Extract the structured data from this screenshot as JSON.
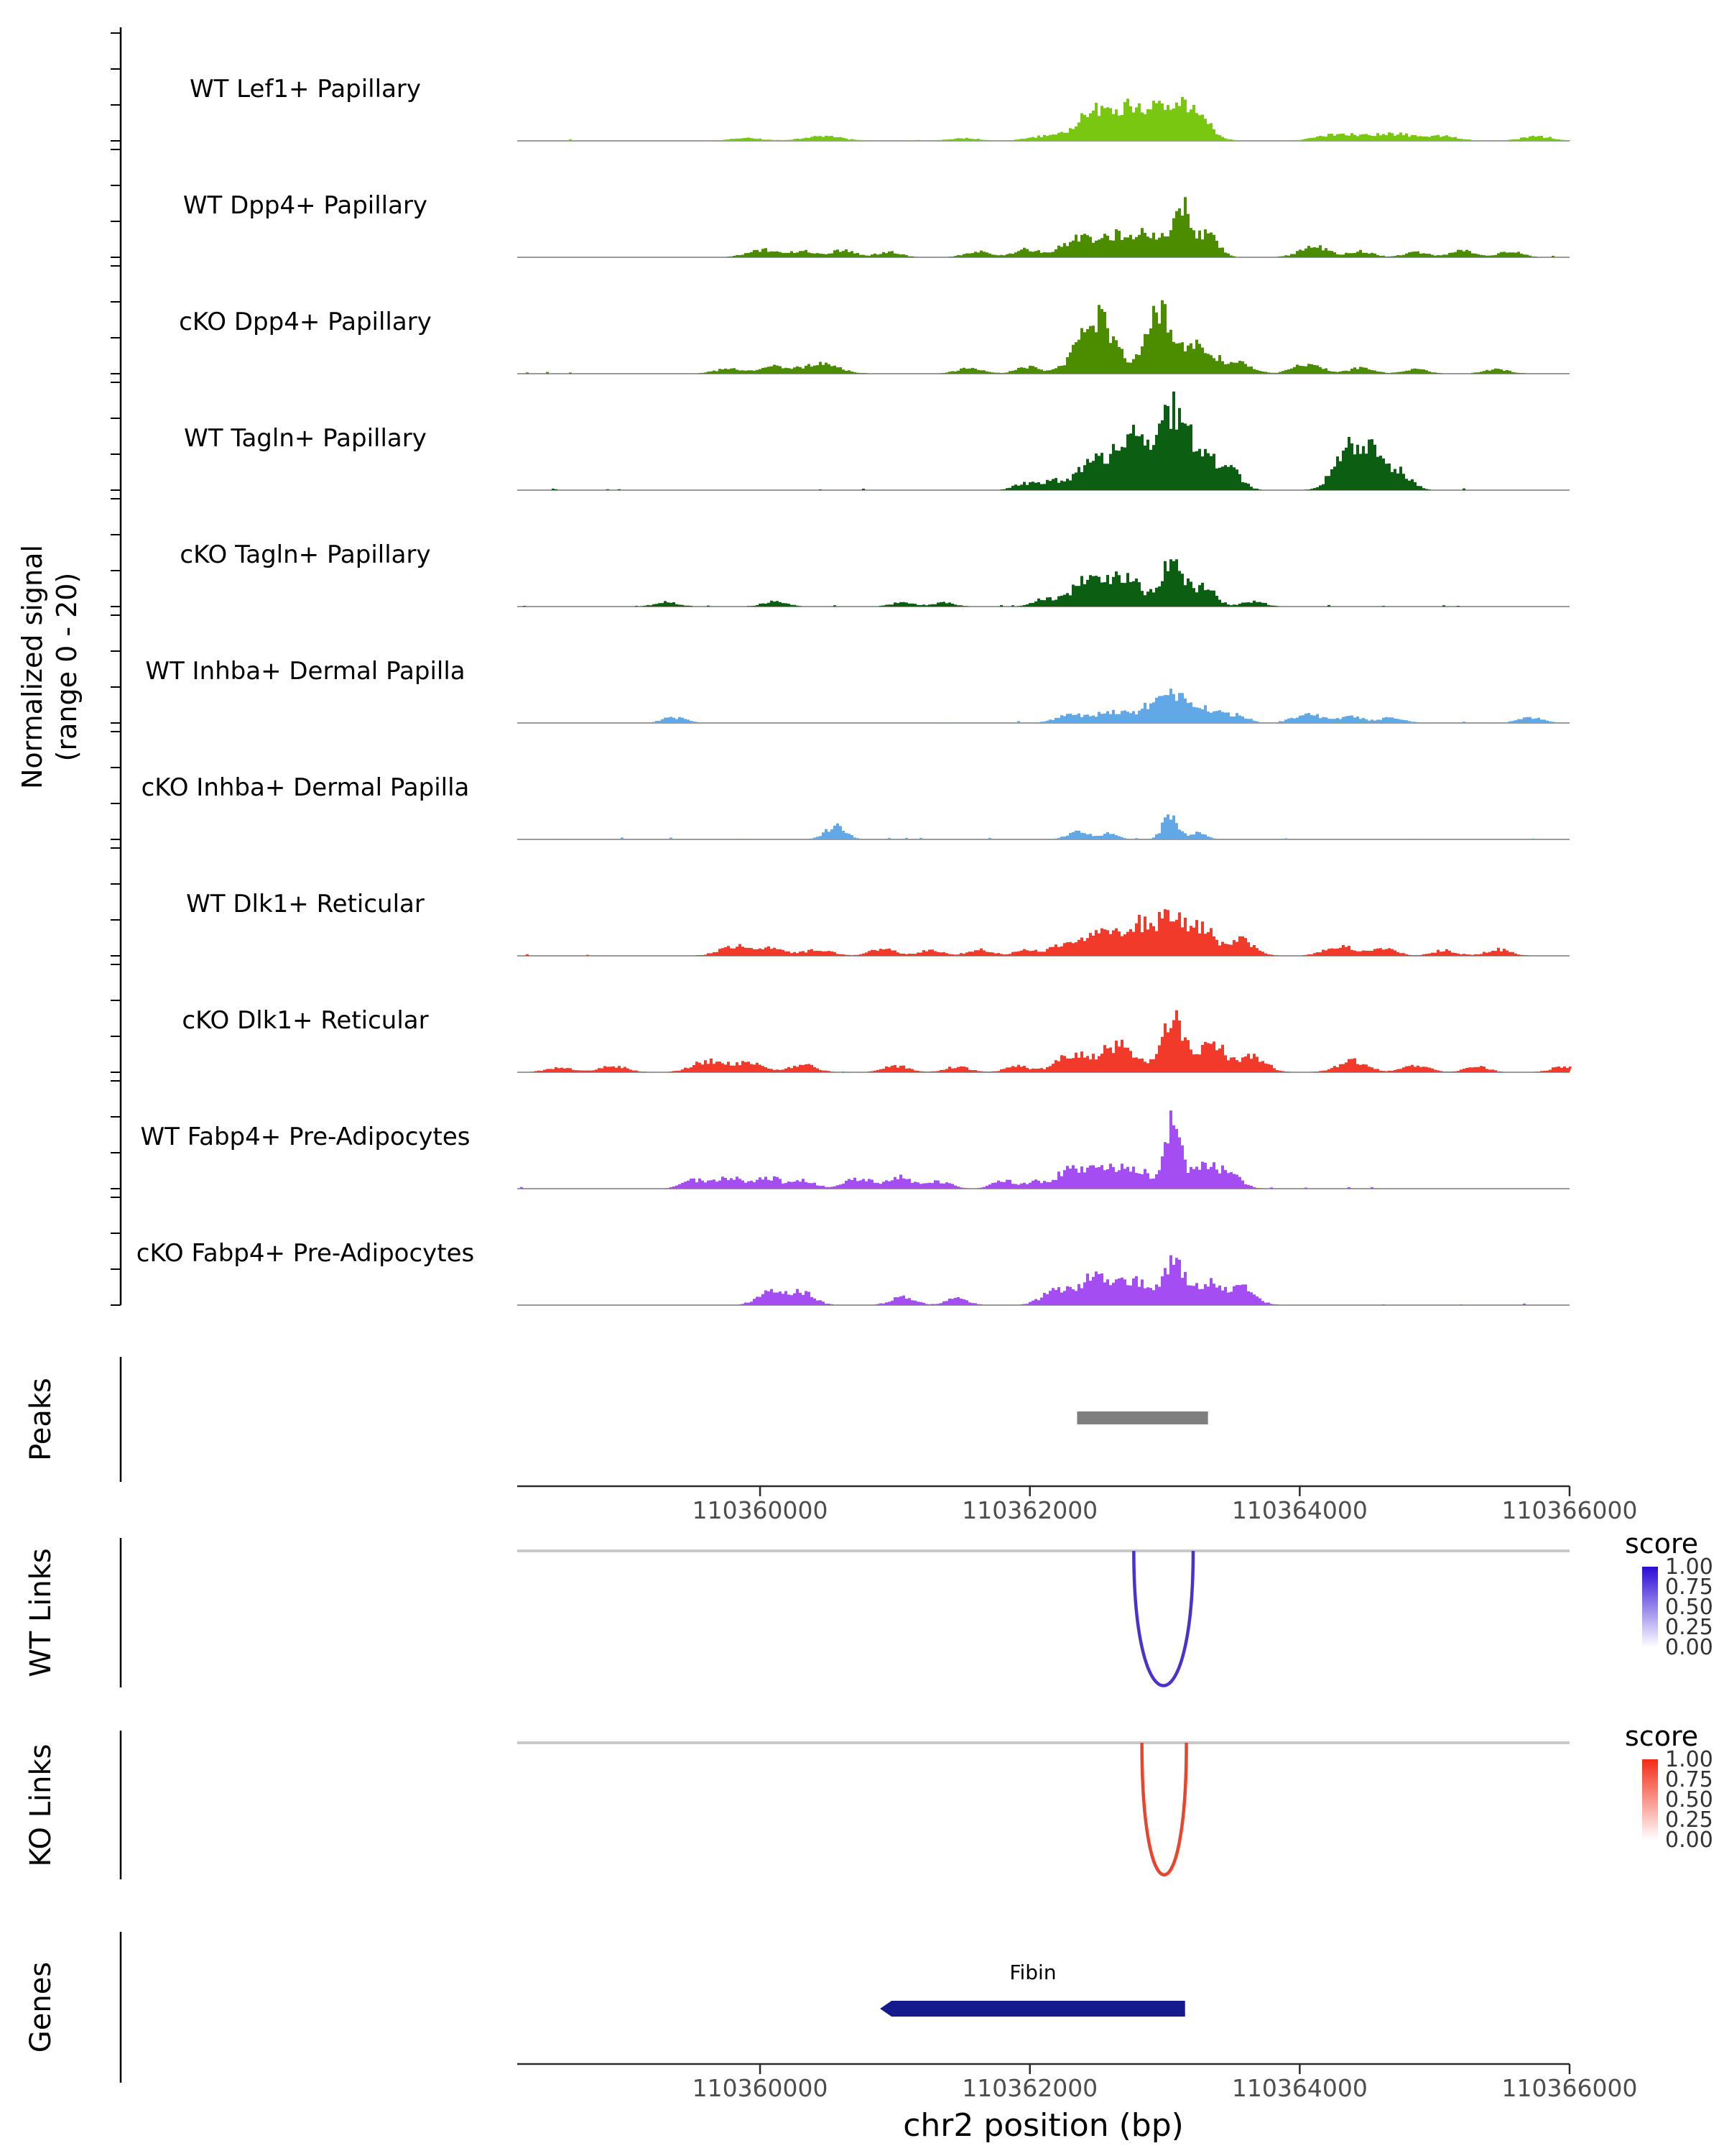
{
  "y_axis": {
    "line1": "Normalized signal",
    "line2": "(range 0 - 20)"
  },
  "panels": {
    "peaks_label": "Peaks",
    "wt_links_label": "WT Links",
    "ko_links_label": "KO Links",
    "genes_label": "Genes"
  },
  "x_axis": {
    "title": "chr2 position (bp)",
    "region_start": 110358200,
    "region_end": 110366000,
    "ticks": [
      110360000,
      110362000,
      110364000,
      110366000
    ],
    "tick_labels": [
      "110360000",
      "110362000",
      "110364000",
      "110366000"
    ]
  },
  "score_legend": {
    "title": "score",
    "labels": [
      "1.00",
      "0.75",
      "0.50",
      "0.25",
      "0.00"
    ],
    "wt_high_color": "#2B0AD6",
    "ko_high_color": "#F22B16",
    "low_color": "#FFFFFF"
  },
  "chart_data": {
    "type": "area",
    "xlabel": "chr2 position (bp)",
    "ylabel": "Normalized signal (range 0 - 20)",
    "x_range": [
      110358200,
      110366000
    ],
    "track_y_range": [
      0,
      20
    ],
    "tracks": [
      {
        "name": "WT Lef1+ Papillary",
        "color": "#7AC712",
        "peaks": [
          [
            110359900,
            0.5,
            120
          ],
          [
            110360450,
            0.9,
            140
          ],
          [
            110361500,
            0.5,
            110
          ],
          [
            110362050,
            0.7,
            100
          ],
          [
            110362500,
            5.5,
            160
          ],
          [
            110362780,
            4.5,
            120
          ],
          [
            110363020,
            6.5,
            110
          ],
          [
            110363220,
            4.2,
            110
          ],
          [
            110364300,
            1.3,
            160
          ],
          [
            110364700,
            1.2,
            150
          ],
          [
            110365050,
            0.8,
            120
          ],
          [
            110365750,
            0.8,
            120
          ]
        ]
      },
      {
        "name": "WT Dpp4+ Papillary",
        "color": "#4C8D00",
        "peaks": [
          [
            110360000,
            1.4,
            110
          ],
          [
            110360300,
            1.1,
            90
          ],
          [
            110360600,
            1.3,
            100
          ],
          [
            110360950,
            1.0,
            90
          ],
          [
            110361600,
            1.1,
            90
          ],
          [
            110361950,
            1.4,
            90
          ],
          [
            110362350,
            3.2,
            140
          ],
          [
            110362650,
            3.8,
            120
          ],
          [
            110362900,
            4.2,
            100
          ],
          [
            110363120,
            8.8,
            55
          ],
          [
            110363300,
            4.6,
            80
          ],
          [
            110364100,
            1.9,
            110
          ],
          [
            110364450,
            1.1,
            90
          ],
          [
            110364850,
            1.0,
            90
          ],
          [
            110365200,
            1.2,
            90
          ],
          [
            110365550,
            1.1,
            90
          ]
        ]
      },
      {
        "name": "cKO Dpp4+ Papillary",
        "color": "#4C8D00",
        "peaks": [
          [
            110359750,
            0.9,
            100
          ],
          [
            110360100,
            1.4,
            110
          ],
          [
            110360450,
            1.8,
            130
          ],
          [
            110361550,
            1.0,
            100
          ],
          [
            110361980,
            1.2,
            90
          ],
          [
            110362480,
            10.5,
            130
          ],
          [
            110362950,
            11.5,
            100
          ],
          [
            110363250,
            5.5,
            110
          ],
          [
            110363550,
            2.2,
            90
          ],
          [
            110364050,
            1.7,
            110
          ],
          [
            110364450,
            1.1,
            90
          ],
          [
            110364850,
            0.8,
            90
          ],
          [
            110365450,
            0.9,
            90
          ]
        ]
      },
      {
        "name": "WT Tagln+ Papillary",
        "color": "#0C5F12",
        "peaks": [
          [
            110361950,
            1.2,
            80
          ],
          [
            110362150,
            1.5,
            80
          ],
          [
            110362480,
            6.0,
            130
          ],
          [
            110362760,
            9.0,
            110
          ],
          [
            110363040,
            13.5,
            85
          ],
          [
            110363250,
            8.0,
            95
          ],
          [
            110363470,
            3.8,
            85
          ],
          [
            110364350,
            8.3,
            100
          ],
          [
            110364560,
            6.0,
            95
          ],
          [
            110364760,
            2.6,
            75
          ]
        ]
      },
      {
        "name": "cKO Tagln+ Papillary",
        "color": "#0C5F12",
        "peaks": [
          [
            110359300,
            0.8,
            90
          ],
          [
            110360100,
            0.9,
            90
          ],
          [
            110361050,
            0.8,
            85
          ],
          [
            110361350,
            0.7,
            80
          ],
          [
            110362100,
            1.3,
            85
          ],
          [
            110362420,
            4.8,
            120
          ],
          [
            110362700,
            5.4,
            110
          ],
          [
            110363040,
            8.4,
            85
          ],
          [
            110363280,
            3.4,
            85
          ],
          [
            110363650,
            1.0,
            80
          ]
        ]
      },
      {
        "name": "WT Inhba+ Dermal Papilla",
        "color": "#63A8E6",
        "peaks": [
          [
            110359350,
            1.0,
            90
          ],
          [
            110362300,
            1.5,
            110
          ],
          [
            110362600,
            2.1,
            110
          ],
          [
            110362900,
            3.4,
            100
          ],
          [
            110363080,
            4.2,
            85
          ],
          [
            110363290,
            2.7,
            90
          ],
          [
            110363520,
            1.4,
            90
          ],
          [
            110364050,
            1.6,
            110
          ],
          [
            110364380,
            1.1,
            90
          ],
          [
            110364680,
            1.0,
            90
          ],
          [
            110365700,
            1.0,
            90
          ]
        ]
      },
      {
        "name": "cKO Inhba+ Dermal Papilla",
        "color": "#63A8E6",
        "peaks": [
          [
            110360550,
            2.4,
            75
          ],
          [
            110362350,
            1.5,
            80
          ],
          [
            110362580,
            1.1,
            70
          ],
          [
            110363030,
            4.4,
            55
          ],
          [
            110363240,
            1.3,
            60
          ]
        ]
      },
      {
        "name": "WT Dlk1+ Reticular",
        "color": "#F23A2B",
        "peaks": [
          [
            110359800,
            1.8,
            110
          ],
          [
            110360080,
            1.5,
            95
          ],
          [
            110360420,
            1.2,
            100
          ],
          [
            110360900,
            1.3,
            95
          ],
          [
            110361260,
            1.0,
            90
          ],
          [
            110361620,
            1.2,
            90
          ],
          [
            110361960,
            1.0,
            85
          ],
          [
            110362280,
            2.4,
            120
          ],
          [
            110362560,
            4.4,
            120
          ],
          [
            110362820,
            5.4,
            105
          ],
          [
            110363050,
            7.8,
            85
          ],
          [
            110363270,
            4.8,
            95
          ],
          [
            110363560,
            2.8,
            95
          ],
          [
            110364280,
            1.9,
            110
          ],
          [
            110364620,
            1.2,
            95
          ],
          [
            110365060,
            1.0,
            90
          ],
          [
            110365460,
            1.2,
            90
          ]
        ]
      },
      {
        "name": "cKO Dlk1+ Reticular",
        "color": "#F23A2B",
        "peaks": [
          [
            110358500,
            0.9,
            95
          ],
          [
            110358900,
            1.2,
            100
          ],
          [
            110359600,
            2.0,
            115
          ],
          [
            110359900,
            1.8,
            110
          ],
          [
            110360300,
            1.4,
            100
          ],
          [
            110361000,
            1.2,
            95
          ],
          [
            110361450,
            1.0,
            90
          ],
          [
            110361900,
            1.1,
            90
          ],
          [
            110362320,
            3.4,
            125
          ],
          [
            110362650,
            4.8,
            120
          ],
          [
            110363050,
            10.0,
            85
          ],
          [
            110363340,
            5.2,
            100
          ],
          [
            110363650,
            2.8,
            95
          ],
          [
            110364380,
            2.1,
            110
          ],
          [
            110364850,
            1.3,
            95
          ],
          [
            110365300,
            1.0,
            90
          ],
          [
            110365950,
            1.1,
            90
          ]
        ]
      },
      {
        "name": "WT Fabp4+ Pre-Adipocytes",
        "color": "#A44DF2",
        "peaks": [
          [
            110359500,
            1.6,
            85
          ],
          [
            110359760,
            2.0,
            95
          ],
          [
            110360050,
            2.1,
            95
          ],
          [
            110360320,
            1.4,
            85
          ],
          [
            110360720,
            1.9,
            95
          ],
          [
            110361020,
            2.1,
            95
          ],
          [
            110361320,
            1.3,
            85
          ],
          [
            110361800,
            1.5,
            85
          ],
          [
            110362030,
            1.1,
            75
          ],
          [
            110362300,
            3.4,
            115
          ],
          [
            110362580,
            3.9,
            115
          ],
          [
            110362820,
            2.9,
            95
          ],
          [
            110363050,
            13.0,
            55
          ],
          [
            110363270,
            4.4,
            85
          ],
          [
            110363470,
            2.9,
            85
          ]
        ]
      },
      {
        "name": "cKO Fabp4+ Pre-Adipocytes",
        "color": "#A44DF2",
        "peaks": [
          [
            110360050,
            2.1,
            90
          ],
          [
            110360280,
            2.6,
            100
          ],
          [
            110361050,
            1.5,
            90
          ],
          [
            110361450,
            1.2,
            85
          ],
          [
            110362180,
            2.4,
            105
          ],
          [
            110362470,
            5.4,
            115
          ],
          [
            110362760,
            4.4,
            105
          ],
          [
            110363060,
            7.4,
            80
          ],
          [
            110363310,
            3.9,
            95
          ],
          [
            110363560,
            3.4,
            95
          ]
        ]
      }
    ],
    "peaks": [
      {
        "start": 110362350,
        "end": 110363320,
        "color": "#7F7F7F"
      }
    ],
    "links": {
      "wt": {
        "start": 110362770,
        "end": 110363210,
        "score": 0.9,
        "color": "#4B31CE"
      },
      "ko": {
        "start": 110362830,
        "end": 110363160,
        "score": 0.9,
        "color": "#E8452E"
      }
    },
    "genes": [
      {
        "name": "Fibin",
        "start": 110360900,
        "end": 110363150,
        "strand": "-",
        "color": "#151B8D"
      }
    ]
  }
}
